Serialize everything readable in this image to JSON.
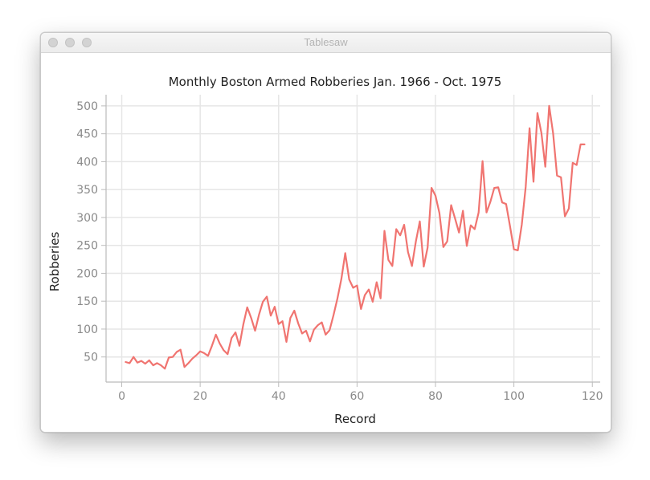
{
  "window": {
    "title": "Tablesaw"
  },
  "colors": {
    "line": "#f07470",
    "grid": "#e6e6e6",
    "axis": "#bbbbbb",
    "tick_label": "#8a8a8a",
    "text": "#222222"
  },
  "chart_data": {
    "type": "line",
    "title": "Monthly Boston Armed Robberies Jan. 1966 - Oct. 1975",
    "xlabel": "Record",
    "ylabel": "Robberies",
    "xlim": [
      -4,
      122
    ],
    "ylim": [
      5,
      520
    ],
    "xticks": [
      0,
      20,
      40,
      60,
      80,
      100,
      120
    ],
    "yticks": [
      50,
      100,
      150,
      200,
      250,
      300,
      350,
      400,
      450,
      500
    ],
    "grid": true,
    "legend": "none",
    "series": [
      {
        "x": [
          1,
          2,
          3,
          4,
          5,
          6,
          7,
          8,
          9,
          10,
          11,
          12,
          13,
          14,
          15,
          16,
          17,
          18,
          19,
          20,
          21,
          22,
          23,
          24,
          25,
          26,
          27,
          28,
          29,
          30,
          31,
          32,
          33,
          34,
          35,
          36,
          37,
          38,
          39,
          40,
          41,
          42,
          43,
          44,
          45,
          46,
          47,
          48,
          49,
          50,
          51,
          52,
          53,
          54,
          55,
          56,
          57,
          58,
          59,
          60,
          61,
          62,
          63,
          64,
          65,
          66,
          67,
          68,
          69,
          70,
          71,
          72,
          73,
          74,
          75,
          76,
          77,
          78,
          79,
          80,
          81,
          82,
          83,
          84,
          85,
          86,
          87,
          88,
          89,
          90,
          91,
          92,
          93,
          94,
          95,
          96,
          97,
          98,
          99,
          100,
          101,
          102,
          103,
          104,
          105,
          106,
          107,
          108,
          109,
          110,
          111,
          112,
          113,
          114,
          115,
          116,
          117,
          118
        ],
        "y": [
          41,
          39,
          50,
          40,
          43,
          38,
          44,
          35,
          39,
          35,
          29,
          49,
          50,
          59,
          63,
          32,
          39,
          47,
          53,
          60,
          57,
          52,
          70,
          90,
          74,
          62,
          55,
          84,
          94,
          70,
          108,
          139,
          120,
          97,
          126,
          149,
          158,
          124,
          140,
          109,
          114,
          77,
          120,
          133,
          110,
          92,
          97,
          78,
          99,
          107,
          112,
          90,
          98,
          125,
          155,
          190,
          236,
          189,
          174,
          178,
          136,
          161,
          171,
          149,
          184,
          155,
          276,
          224,
          213,
          279,
          268,
          287,
          238,
          213,
          257,
          293,
          212,
          246,
          353,
          339,
          308,
          247,
          257,
          322,
          298,
          273,
          312,
          249,
          286,
          279,
          309,
          401,
          309,
          328,
          353,
          354,
          327,
          324,
          285,
          243,
          241,
          287,
          355,
          460,
          364,
          487,
          452,
          391,
          500,
          451,
          375,
          372,
          302,
          316,
          398,
          394,
          431,
          431
        ]
      }
    ]
  }
}
